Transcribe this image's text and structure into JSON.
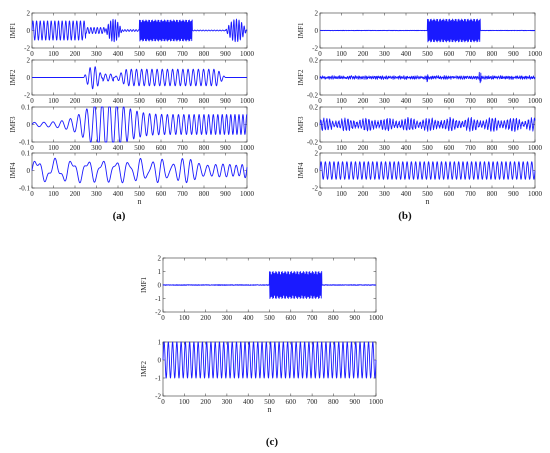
{
  "colors": {
    "signal": "#1a1aff",
    "axis": "#333333"
  },
  "captions": {
    "a": "(a)",
    "b": "(b)",
    "c": "(c)"
  },
  "chart_data": [
    {
      "panel": "(a)",
      "type": "line",
      "xlabel": "n",
      "x_ticks": [
        0,
        100,
        200,
        300,
        400,
        500,
        600,
        700,
        800,
        900,
        1000
      ],
      "xlim": [
        0,
        1000
      ],
      "subplots": [
        {
          "ylabel": "IMF1",
          "ylim": [
            -2,
            2
          ],
          "yticks": [
            -2,
            0,
            2
          ],
          "yticklabels": [
            "-2",
            "0",
            "2"
          ]
        },
        {
          "ylabel": "IMF2",
          "ylim": [
            -2,
            2
          ],
          "yticks": [
            -2,
            0,
            2
          ],
          "yticklabels": [
            "-2",
            "0",
            "2"
          ]
        },
        {
          "ylabel": "IMF3",
          "ylim": [
            -0.1,
            0.1
          ],
          "yticks": [
            -0.1,
            0,
            0.1
          ],
          "yticklabels": [
            "-0.1",
            "0",
            "0.1"
          ]
        },
        {
          "ylabel": "IMF4",
          "ylim": [
            -0.1,
            0.1
          ],
          "yticks": [
            -0.1,
            0,
            0.1
          ],
          "yticklabels": [
            "-0.1",
            "0",
            "0.1"
          ]
        }
      ]
    },
    {
      "panel": "(b)",
      "type": "line",
      "xlabel": "n",
      "x_ticks": [
        0,
        100,
        200,
        300,
        400,
        500,
        600,
        700,
        800,
        900,
        1000
      ],
      "xlim": [
        0,
        1000
      ],
      "subplots": [
        {
          "ylabel": "IMF1",
          "ylim": [
            -2,
            2
          ],
          "yticks": [
            -2,
            0,
            2
          ],
          "yticklabels": [
            "-2",
            "0",
            "2"
          ]
        },
        {
          "ylabel": "IMF2",
          "ylim": [
            -0.2,
            0.2
          ],
          "yticks": [
            -0.2,
            0,
            0.2
          ],
          "yticklabels": [
            "-0.2",
            "0",
            "0.2"
          ]
        },
        {
          "ylabel": "IMF3",
          "ylim": [
            -0.2,
            0.2
          ],
          "yticks": [
            -0.2,
            0,
            0.2
          ],
          "yticklabels": [
            "-0.2",
            "0",
            "0.2"
          ]
        },
        {
          "ylabel": "IMF4",
          "ylim": [
            -2,
            2
          ],
          "yticks": [
            -2,
            0,
            2
          ],
          "yticklabels": [
            "-2",
            "0",
            "2"
          ]
        }
      ]
    },
    {
      "panel": "(c)",
      "type": "line",
      "xlabel": "n",
      "x_ticks": [
        0,
        100,
        200,
        300,
        400,
        500,
        600,
        700,
        800,
        900,
        1000
      ],
      "xlim": [
        0,
        1000
      ],
      "subplots": [
        {
          "ylabel": "IMF1",
          "ylim": [
            -2,
            2
          ],
          "yticks": [
            -2,
            -1,
            0,
            1,
            2
          ],
          "yticklabels": [
            "-2",
            "-1",
            "0",
            "1",
            "2"
          ]
        },
        {
          "ylabel": "IMF2",
          "ylim": [
            -2,
            1
          ],
          "yticks": [
            -2,
            -1,
            0,
            1
          ],
          "yticklabels": [
            "-2",
            "-1",
            "0",
            "1"
          ]
        }
      ]
    }
  ]
}
